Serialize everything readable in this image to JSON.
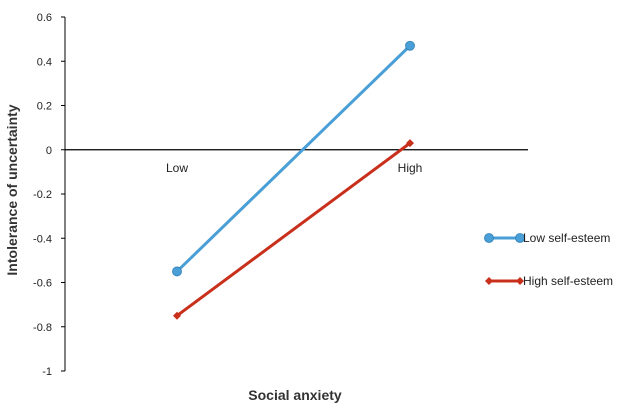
{
  "chart_data": {
    "type": "line",
    "categories": [
      "Low",
      "High"
    ],
    "series": [
      {
        "name": "Low self-esteem",
        "values": [
          -0.55,
          0.47
        ],
        "color": "#4a9fd6",
        "marker": "circle"
      },
      {
        "name": "High self-esteem",
        "values": [
          -0.75,
          0.03
        ],
        "color": "#c9301c",
        "marker": "diamond"
      }
    ],
    "xlabel": "Social anxiety",
    "ylabel": "Intolerance of uncertainty",
    "ylim": [
      -1,
      0.6
    ],
    "yticks": [
      "0.6",
      "0.4",
      "0.2",
      "0",
      "-0.2",
      "-0.4",
      "-0.6",
      "-0.8",
      "-1"
    ],
    "grid": false,
    "legend_position": "right"
  }
}
